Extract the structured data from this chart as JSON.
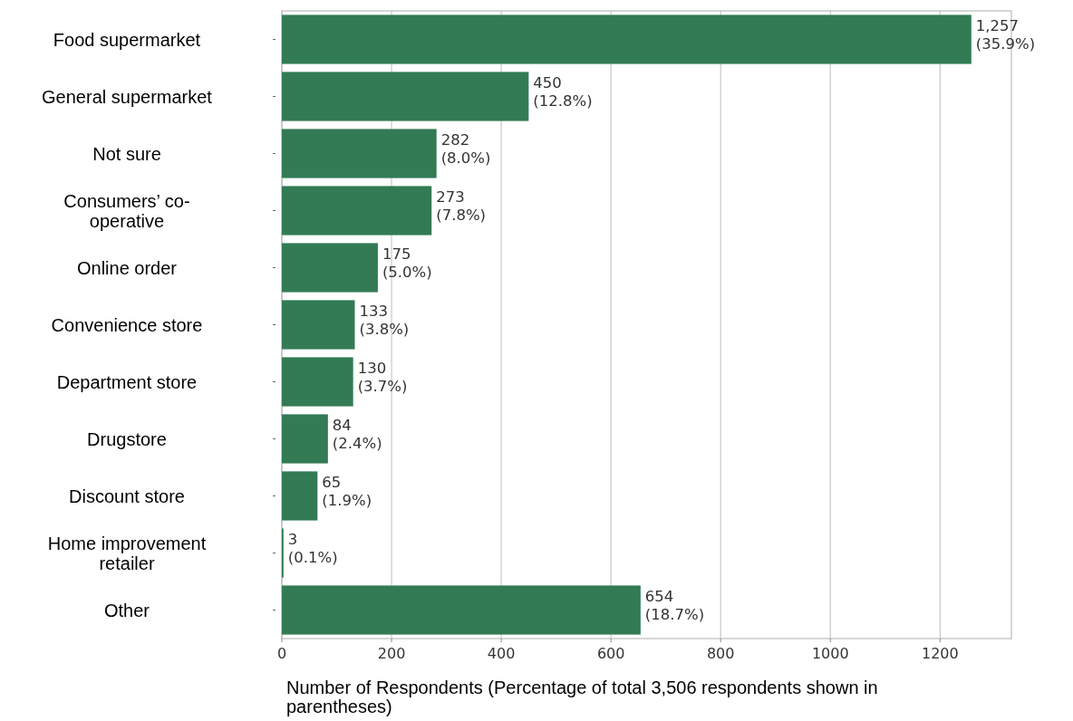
{
  "chart_data": {
    "type": "bar",
    "orientation": "horizontal",
    "xlabel": "Number of Respondents (Percentage of total 3,506 respondents shown in parentheses)",
    "categories": [
      "Food supermarket",
      "General supermarket",
      "Not sure",
      "Consumers’ co-operative",
      "Online order",
      "Convenience store",
      "Department store",
      "Drugstore",
      "Discount store",
      "Home improvement retailer",
      "Other"
    ],
    "values": [
      1257,
      450,
      282,
      273,
      175,
      133,
      130,
      84,
      65,
      3,
      654
    ],
    "value_labels": [
      "1,257\n(35.9%)",
      "450\n(12.8%)",
      "282\n(8.0%)",
      "273\n(7.8%)",
      "175\n(5.0%)",
      "133\n(3.8%)",
      "130\n(3.7%)",
      "84\n(2.4%)",
      "65\n(1.9%)",
      "3\n(0.1%)",
      "654\n(18.7%)"
    ],
    "color": "#327b55",
    "xlim": [
      0,
      1330
    ],
    "xticks": [
      0,
      200,
      400,
      600,
      800,
      1000,
      1200
    ],
    "grid": "x"
  }
}
